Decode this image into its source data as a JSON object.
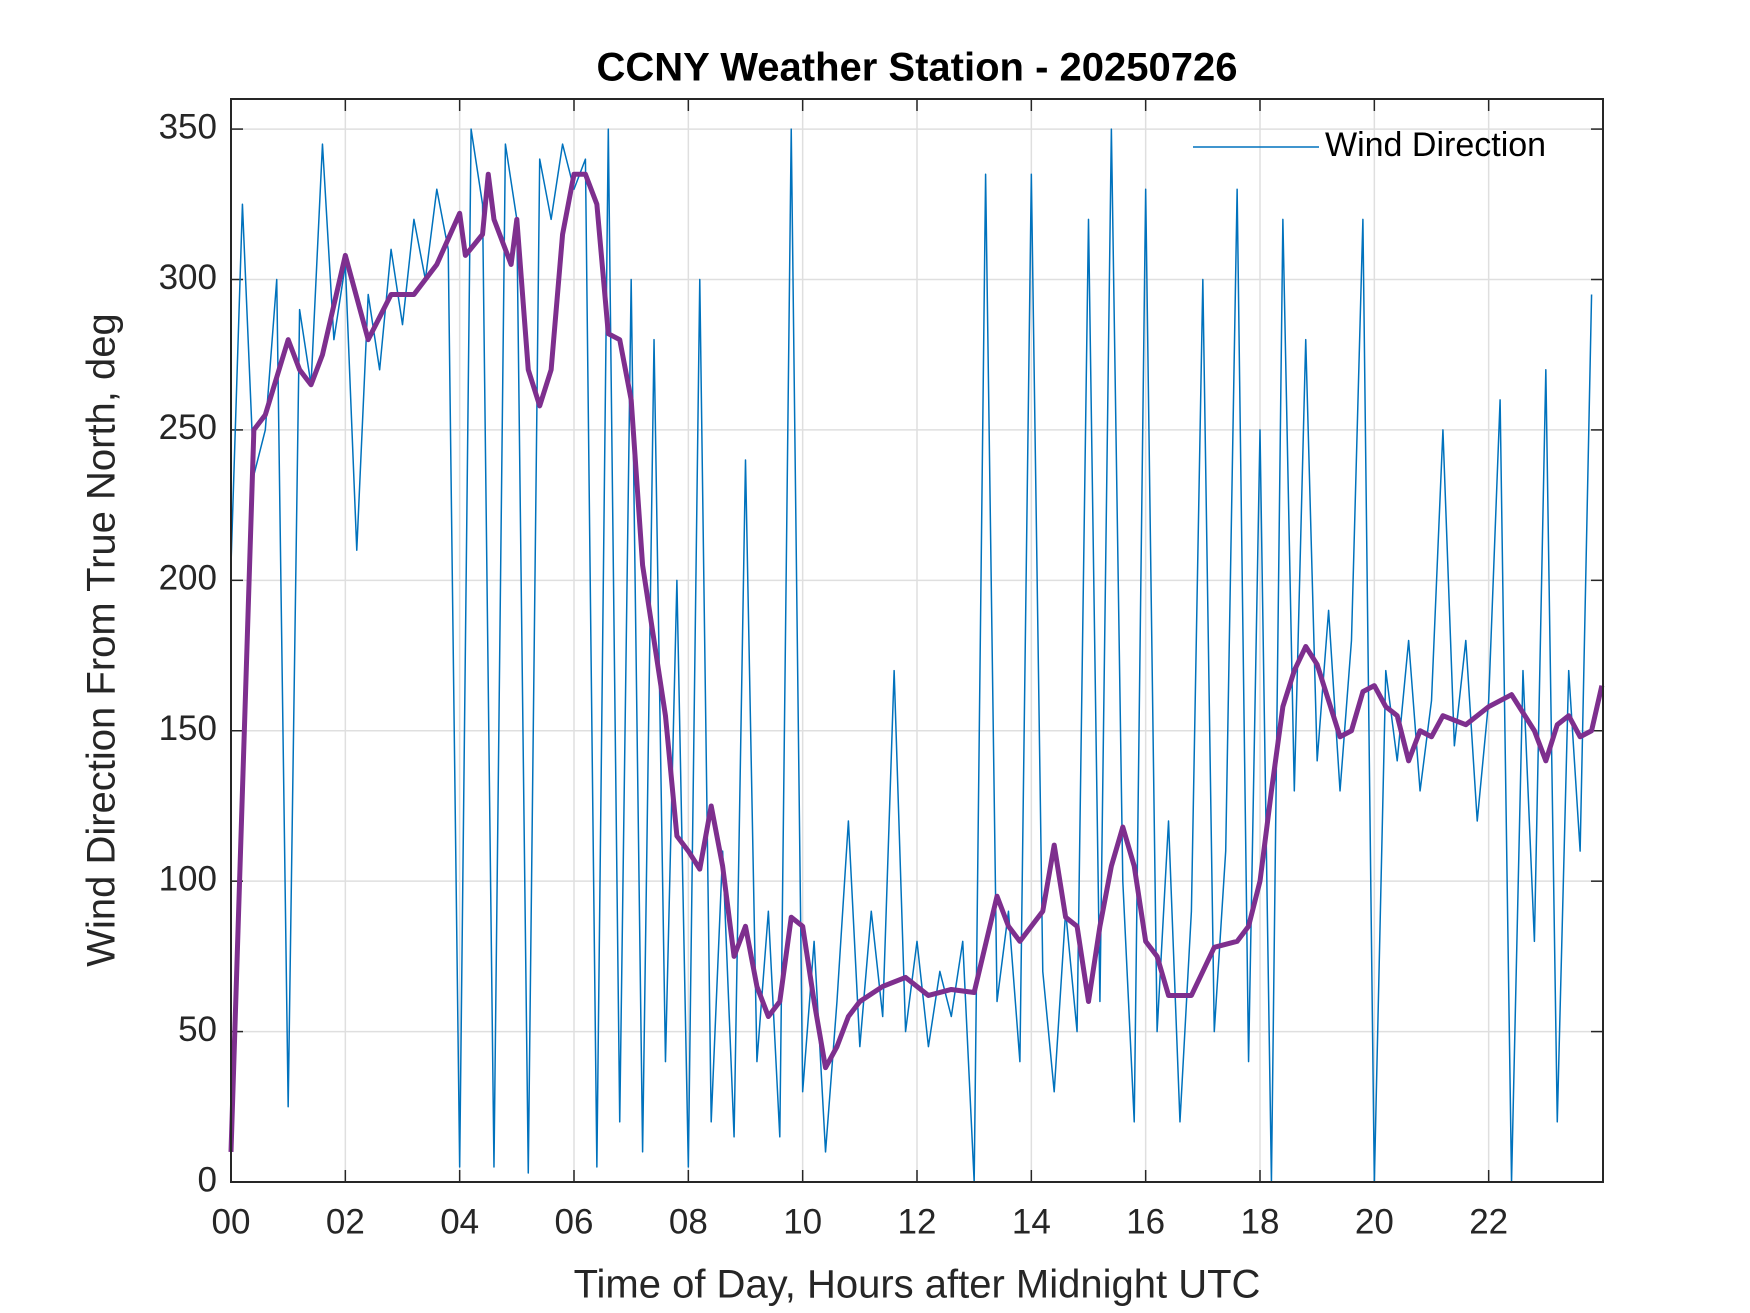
{
  "chart_data": {
    "type": "line",
    "title": "CCNY Weather Station - 20250726",
    "xlabel": "Time of Day, Hours after Midnight UTC",
    "ylabel": "Wind Direction From True North, deg",
    "xlim": [
      0,
      24
    ],
    "xticks": [
      {
        "value": 0,
        "label": "00"
      },
      {
        "value": 2,
        "label": "02"
      },
      {
        "value": 4,
        "label": "04"
      },
      {
        "value": 6,
        "label": "06"
      },
      {
        "value": 8,
        "label": "08"
      },
      {
        "value": 10,
        "label": "10"
      },
      {
        "value": 12,
        "label": "12"
      },
      {
        "value": 14,
        "label": "14"
      },
      {
        "value": 16,
        "label": "16"
      },
      {
        "value": 18,
        "label": "18"
      },
      {
        "value": 20,
        "label": "20"
      },
      {
        "value": 22,
        "label": "22"
      }
    ],
    "ylim": [
      0,
      360
    ],
    "yticks": [
      0,
      50,
      100,
      150,
      200,
      250,
      300,
      350
    ],
    "grid": true,
    "legend": "northeast",
    "series": [
      {
        "name": "Wind Direction",
        "color": "#0072bd",
        "width": 1.5,
        "x": [
          0,
          0.2,
          0.4,
          0.6,
          0.8,
          1,
          1.2,
          1.4,
          1.6,
          1.8,
          2,
          2.2,
          2.4,
          2.6,
          2.8,
          3,
          3.2,
          3.4,
          3.6,
          3.8,
          4,
          4.2,
          4.4,
          4.6,
          4.8,
          5,
          5.2,
          5.4,
          5.6,
          5.8,
          6,
          6.2,
          6.4,
          6.6,
          6.8,
          7,
          7.2,
          7.4,
          7.6,
          7.8,
          8,
          8.2,
          8.4,
          8.6,
          8.8,
          9,
          9.2,
          9.4,
          9.6,
          9.8,
          10,
          10.2,
          10.4,
          10.6,
          10.8,
          11,
          11.2,
          11.4,
          11.6,
          11.8,
          12,
          12.2,
          12.4,
          12.6,
          12.8,
          13,
          13.2,
          13.4,
          13.6,
          13.8,
          14,
          14.2,
          14.4,
          14.6,
          14.8,
          15,
          15.2,
          15.4,
          15.6,
          15.8,
          16,
          16.2,
          16.4,
          16.6,
          16.8,
          17,
          17.2,
          17.4,
          17.6,
          17.8,
          18,
          18.2,
          18.4,
          18.6,
          18.8,
          19,
          19.2,
          19.4,
          19.6,
          19.8,
          20,
          20.2,
          20.4,
          20.6,
          20.8,
          21,
          21.2,
          21.4,
          21.6,
          21.8,
          22,
          22.2,
          22.4,
          22.6,
          22.8,
          23,
          23.2,
          23.4,
          23.6,
          23.8
        ],
        "values": [
          205,
          325,
          235,
          250,
          300,
          25,
          290,
          265,
          345,
          280,
          305,
          210,
          295,
          270,
          310,
          285,
          320,
          300,
          330,
          310,
          5,
          350,
          325,
          5,
          345,
          320,
          3,
          340,
          320,
          345,
          330,
          340,
          5,
          350,
          20,
          300,
          10,
          280,
          40,
          200,
          5,
          300,
          20,
          110,
          15,
          240,
          40,
          90,
          15,
          350,
          30,
          80,
          10,
          60,
          120,
          45,
          90,
          55,
          170,
          50,
          80,
          45,
          70,
          55,
          80,
          0,
          335,
          60,
          90,
          40,
          335,
          70,
          30,
          90,
          50,
          320,
          60,
          350,
          100,
          20,
          330,
          50,
          120,
          20,
          90,
          300,
          50,
          110,
          330,
          40,
          250,
          0,
          320,
          130,
          280,
          140,
          190,
          130,
          180,
          320,
          0,
          170,
          140,
          180,
          130,
          160,
          250,
          145,
          180,
          120,
          160,
          260,
          0,
          170,
          80,
          270,
          20,
          170,
          110,
          295
        ]
      },
      {
        "color": "#7e2f8e",
        "width": 5,
        "x": [
          0,
          0.4,
          0.6,
          1,
          1.2,
          1.4,
          1.6,
          2,
          2.4,
          2.8,
          3.2,
          3.6,
          4,
          4.1,
          4.4,
          4.5,
          4.6,
          4.9,
          5,
          5.2,
          5.4,
          5.6,
          5.8,
          6,
          6.2,
          6.4,
          6.6,
          6.8,
          7,
          7.2,
          7.4,
          7.6,
          7.8,
          8,
          8.2,
          8.4,
          8.6,
          8.8,
          9,
          9.2,
          9.4,
          9.6,
          9.8,
          10,
          10.2,
          10.4,
          10.6,
          10.8,
          11,
          11.4,
          11.8,
          12.2,
          12.6,
          13,
          13.4,
          13.6,
          13.8,
          14,
          14.2,
          14.4,
          14.6,
          14.8,
          15,
          15.2,
          15.4,
          15.6,
          15.8,
          16,
          16.2,
          16.4,
          16.8,
          17,
          17.2,
          17.6,
          17.8,
          18,
          18.2,
          18.4,
          18.6,
          18.8,
          19,
          19.2,
          19.4,
          19.6,
          19.8,
          20,
          20.2,
          20.4,
          20.6,
          20.8,
          21,
          21.2,
          21.6,
          22,
          22.4,
          22.8,
          23,
          23.2,
          23.4,
          23.6,
          23.8,
          23.98
        ],
        "values": [
          10,
          250,
          255,
          280,
          270,
          265,
          275,
          308,
          280,
          295,
          295,
          305,
          322,
          308,
          315,
          335,
          320,
          305,
          320,
          270,
          258,
          270,
          315,
          335,
          335,
          325,
          282,
          280,
          260,
          205,
          180,
          155,
          115,
          110,
          104,
          125,
          105,
          75,
          85,
          65,
          55,
          60,
          88,
          85,
          60,
          38,
          45,
          55,
          60,
          65,
          68,
          62,
          64,
          63,
          95,
          85,
          80,
          85,
          90,
          112,
          88,
          85,
          60,
          85,
          105,
          118,
          105,
          80,
          75,
          62,
          62,
          70,
          78,
          80,
          85,
          100,
          130,
          158,
          170,
          178,
          172,
          160,
          148,
          150,
          163,
          165,
          158,
          155,
          140,
          150,
          148,
          155,
          152,
          158,
          162,
          150,
          140,
          152,
          155,
          148,
          150,
          165
        ]
      }
    ]
  }
}
